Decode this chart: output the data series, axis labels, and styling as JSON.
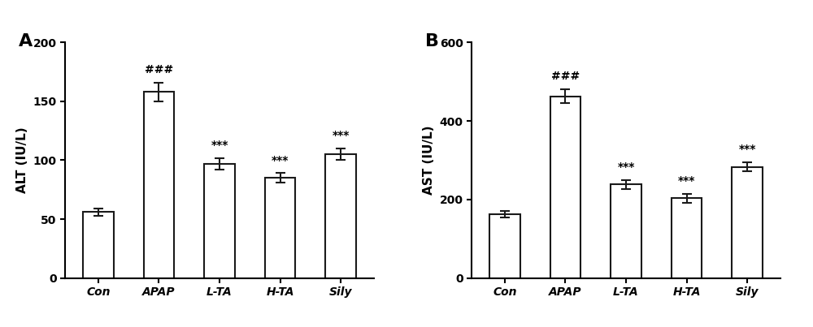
{
  "panel_A": {
    "label": "A",
    "ylabel": "ALT (IU/L)",
    "categories": [
      "Con",
      "APAP",
      "L-TA",
      "H-TA",
      "Sily"
    ],
    "values": [
      56,
      158,
      97,
      85,
      105
    ],
    "errors": [
      3,
      8,
      5,
      4,
      5
    ],
    "annotations": [
      "",
      "###",
      "***",
      "***",
      "***"
    ],
    "ylim": [
      0,
      200
    ],
    "yticks": [
      0,
      50,
      100,
      150,
      200
    ]
  },
  "panel_B": {
    "label": "B",
    "ylabel": "AST (IU/L)",
    "categories": [
      "Con",
      "APAP",
      "L-TA",
      "H-TA",
      "Sily"
    ],
    "values": [
      162,
      463,
      238,
      203,
      283
    ],
    "errors": [
      8,
      18,
      12,
      12,
      12
    ],
    "annotations": [
      "",
      "###",
      "***",
      "***",
      "***"
    ],
    "ylim": [
      0,
      600
    ],
    "yticks": [
      0,
      200,
      400,
      600
    ]
  },
  "bar_color": "#ffffff",
  "bar_edgecolor": "#1a1a1a",
  "bar_linewidth": 1.5,
  "bar_width": 0.5,
  "errorbar_color": "#1a1a1a",
  "errorbar_linewidth": 1.5,
  "errorbar_capsize": 4,
  "annotation_fontsize": 10,
  "axis_label_fontsize": 11,
  "tick_label_fontsize": 10,
  "panel_label_fontsize": 16,
  "background_color": "#ffffff",
  "spine_linewidth": 1.5
}
